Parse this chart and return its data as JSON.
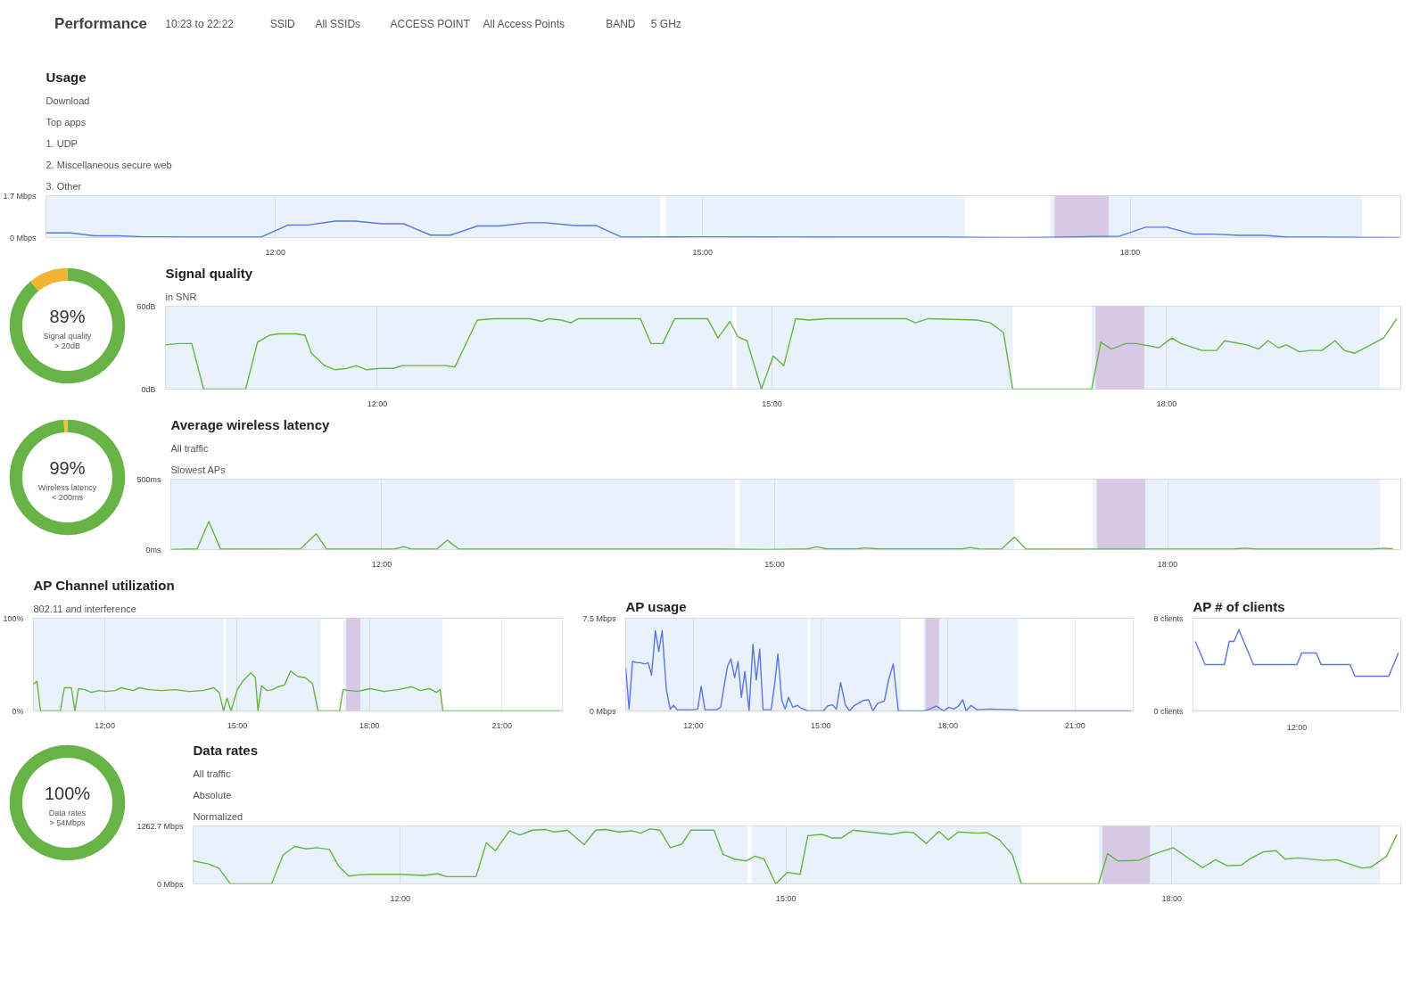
{
  "chart_data": [
    {
      "type": "other",
      "title": "Performance",
      "annotations": [
        "10:23 to 22:22",
        "SSID",
        "All SSIDs",
        "ACCESS POINT",
        "All Access Points",
        "BAND",
        "5 GHz"
      ]
    },
    {
      "type": "line",
      "title": "Usage",
      "annotations": [
        "Download",
        "Top apps",
        "1. UDP",
        "2. Miscellaneous secure web",
        "3. Other"
      ],
      "x": [
        10.39,
        10.56,
        10.73,
        10.9,
        11.08,
        11.25,
        11.42,
        11.77,
        11.9,
        12.09,
        12.23,
        12.42,
        12.56,
        12.75,
        12.9,
        13.09,
        13.23,
        13.42,
        13.57,
        13.77,
        13.9,
        14.1,
        14.25,
        14.43,
        15.01,
        15.97,
        16.66,
        17.21,
        17.56,
        17.77,
        17.92,
        18.11,
        18.26,
        18.44,
        18.59,
        18.77,
        18.94,
        19.11,
        19.28,
        19.89
      ],
      "series": [
        {
          "color": "#5c74e6",
          "values": [
            0.19,
            0.19,
            0.07,
            0.07,
            0.03,
            0.03,
            0.02,
            0.02,
            0.02,
            0.51,
            0.51,
            0.67,
            0.67,
            0.56,
            0.56,
            0.1,
            0.1,
            0.47,
            0.47,
            0.6,
            0.6,
            0.49,
            0.49,
            0.02,
            0.03,
            0.02,
            0.02,
            0,
            0.02,
            0.05,
            0.05,
            0.42,
            0.42,
            0.14,
            0.14,
            0.09,
            0.09,
            0.02,
            0.02,
            0
          ]
        }
      ],
      "xlim": [
        10.39,
        19.9
      ],
      "ylim": [
        0,
        1.7
      ],
      "xticks": [
        {
          "value": 12,
          "label": "12:00"
        },
        {
          "value": 15,
          "label": "15:00"
        },
        {
          "value": 18,
          "label": "18:00"
        }
      ],
      "yticks": [
        {
          "value": 0,
          "label": "0 Mbps"
        },
        {
          "value": 1.7,
          "label": "1.7 Mbps"
        }
      ],
      "grid": "x",
      "bands": [
        {
          "axis": "x",
          "from": 10.39,
          "to": 14.7,
          "color": "#a9cdf0"
        },
        {
          "axis": "x",
          "from": 14.74,
          "to": 16.84,
          "color": "#a9cdf0"
        },
        {
          "axis": "x",
          "from": 17.44,
          "to": 19.63,
          "color": "#a9cdf0"
        },
        {
          "axis": "x",
          "from": 17.47,
          "to": 17.85,
          "color": "#a24ea8"
        }
      ]
    },
    {
      "type": "donut",
      "categories": [
        null,
        null
      ],
      "values": [
        89,
        11
      ],
      "colors": [
        "#67b346",
        "#f5b335"
      ],
      "value_labels": [
        "89%",
        null
      ],
      "annotations": [
        "Signal quality\n> 20dB"
      ]
    },
    {
      "type": "line",
      "title": "Signal quality",
      "annotations": [
        "in SNR"
      ],
      "x": [
        10.39,
        10.49,
        10.59,
        10.68,
        11.0,
        11.09,
        11.18,
        11.25,
        11.38,
        11.45,
        11.5,
        11.6,
        11.68,
        11.77,
        11.84,
        11.92,
        12.02,
        12.12,
        12.19,
        12.36,
        12.52,
        12.59,
        12.76,
        12.89,
        13.16,
        13.25,
        13.3,
        13.4,
        13.47,
        13.53,
        14.0,
        14.08,
        14.17,
        14.26,
        14.51,
        14.59,
        14.68,
        14.74,
        14.81,
        14.92,
        15.01,
        15.09,
        15.18,
        15.28,
        15.42,
        16.02,
        16.09,
        16.19,
        16.56,
        16.66,
        16.76,
        16.83,
        17.43,
        17.5,
        17.58,
        17.69,
        17.77,
        17.94,
        18.04,
        18.11,
        18.27,
        18.38,
        18.44,
        18.61,
        18.7,
        18.77,
        18.85,
        18.91,
        19.01,
        19.09,
        19.18,
        19.28,
        19.35,
        19.43,
        19.55,
        19.65,
        19.75
      ],
      "series": [
        {
          "color": "#67b346",
          "values": [
            32,
            33,
            33,
            0,
            0,
            34,
            39,
            40,
            40,
            39,
            26,
            17,
            14,
            15,
            17,
            14,
            15,
            15,
            17,
            17,
            17,
            16,
            50,
            51,
            51,
            49,
            51,
            50,
            48,
            51,
            51,
            33,
            33,
            51,
            51,
            37,
            49,
            38,
            35,
            0,
            24,
            17,
            51,
            50,
            51,
            51,
            48,
            51,
            50,
            48,
            41,
            0,
            0,
            34,
            29,
            33,
            33,
            30,
            37,
            33,
            28,
            28,
            35,
            32,
            29,
            35,
            30,
            32,
            27,
            28,
            28,
            35,
            28,
            26,
            32,
            37,
            51
          ]
        }
      ],
      "xlim": [
        10.39,
        19.78
      ],
      "ylim": [
        0,
        60
      ],
      "xticks": [
        {
          "value": 12,
          "label": "12:00"
        },
        {
          "value": 15,
          "label": "15:00"
        },
        {
          "value": 18,
          "label": "18:00"
        }
      ],
      "yticks": [
        {
          "value": 0,
          "label": "0dB"
        },
        {
          "value": 60,
          "label": "60dB"
        }
      ],
      "grid": "x",
      "bands": [
        {
          "axis": "x",
          "from": 10.39,
          "to": 14.7,
          "color": "#a9cdf0"
        },
        {
          "axis": "x",
          "from": 14.73,
          "to": 16.83,
          "color": "#a9cdf0"
        },
        {
          "axis": "x",
          "from": 17.43,
          "to": 19.62,
          "color": "#a9cdf0"
        },
        {
          "axis": "x",
          "from": 17.46,
          "to": 17.83,
          "color": "#a24ea8"
        }
      ]
    },
    {
      "type": "donut",
      "categories": [
        null,
        null
      ],
      "values": [
        99,
        1
      ],
      "colors": [
        "#67b346",
        "#e8c53a"
      ],
      "value_labels": [
        "99%",
        null
      ],
      "annotations": [
        "Wireless latency\n< 200ms"
      ]
    },
    {
      "type": "line",
      "title": "Average wireless latency",
      "annotations": [
        "All traffic",
        "Slowest APs"
      ],
      "x": [
        10.39,
        10.51,
        10.59,
        10.68,
        10.77,
        11.38,
        11.5,
        11.58,
        12.09,
        12.17,
        12.23,
        12.42,
        12.5,
        12.59,
        14.61,
        14.95,
        15.25,
        15.32,
        15.4,
        15.62,
        15.69,
        15.79,
        16.43,
        16.49,
        16.56,
        16.73,
        16.83,
        16.92,
        18.51,
        18.6,
        18.68,
        19.55,
        19.65,
        19.72
      ],
      "series": [
        {
          "color": "#67b346",
          "values": [
            0,
            3,
            3,
            200,
            3,
            5,
            113,
            3,
            3,
            20,
            3,
            3,
            67,
            3,
            3,
            0,
            5,
            20,
            5,
            5,
            12,
            5,
            5,
            15,
            5,
            3,
            88,
            3,
            5,
            10,
            3,
            3,
            10,
            5
          ]
        }
      ],
      "xlim": [
        10.39,
        19.78
      ],
      "ylim": [
        0,
        500
      ],
      "xticks": [
        {
          "value": 12,
          "label": "12:00"
        },
        {
          "value": 15,
          "label": "15:00"
        },
        {
          "value": 18,
          "label": "18:00"
        }
      ],
      "yticks": [
        {
          "value": 0,
          "label": "0ms"
        },
        {
          "value": 500,
          "label": "500ms"
        }
      ],
      "grid": "x",
      "bands": [
        {
          "axis": "x",
          "from": 10.39,
          "to": 14.7,
          "color": "#a9cdf0"
        },
        {
          "axis": "x",
          "from": 14.73,
          "to": 16.83,
          "color": "#a9cdf0"
        },
        {
          "axis": "x",
          "from": 17.43,
          "to": 19.62,
          "color": "#a9cdf0"
        },
        {
          "axis": "x",
          "from": 17.46,
          "to": 17.83,
          "color": "#a24ea8"
        }
      ]
    },
    {
      "type": "line",
      "title": "AP Channel utilization",
      "annotations": [
        "802.11 and interference"
      ],
      "x": [
        10.38,
        10.46,
        10.54,
        10.99,
        11.08,
        11.24,
        11.32,
        11.4,
        11.55,
        11.69,
        11.86,
        12.02,
        12.23,
        12.37,
        12.64,
        12.78,
        12.99,
        13.29,
        13.6,
        13.91,
        14.22,
        14.47,
        14.59,
        14.69,
        14.77,
        14.86,
        15.0,
        15.14,
        15.31,
        15.41,
        15.47,
        15.55,
        15.68,
        15.8,
        15.92,
        16.07,
        16.21,
        16.38,
        16.54,
        16.71,
        16.83,
        17.32,
        17.4,
        17.71,
        18.02,
        18.33,
        18.64,
        18.95,
        19.15,
        19.36,
        19.52,
        19.6,
        19.66,
        22.33
      ],
      "series": [
        {
          "color": "#67b346",
          "values": [
            29,
            32,
            0,
            0,
            25,
            25,
            0,
            24,
            23,
            20,
            22,
            21,
            22,
            25,
            22,
            25,
            23,
            22,
            23,
            21,
            22,
            25,
            20,
            0,
            14,
            0,
            23,
            33,
            41,
            36,
            0,
            27,
            22,
            23,
            26,
            28,
            43,
            37,
            36,
            29,
            0,
            0,
            23,
            21,
            24,
            21,
            23,
            26,
            22,
            24,
            20,
            23,
            0,
            0
          ]
        }
      ],
      "xlim": [
        10.38,
        22.37
      ],
      "ylim": [
        0,
        100
      ],
      "xticks": [
        {
          "value": 12,
          "label": "12:00"
        },
        {
          "value": 15,
          "label": "15:00"
        },
        {
          "value": 18,
          "label": "18:00"
        },
        {
          "value": 21,
          "label": "21:00"
        }
      ],
      "yticks": [
        {
          "value": 0,
          "label": "0%"
        },
        {
          "value": 100,
          "label": "100%"
        }
      ],
      "grid": "x",
      "bands": [
        {
          "axis": "x",
          "from": 10.38,
          "to": 14.69,
          "color": "#a9cdf0"
        },
        {
          "axis": "x",
          "from": 14.75,
          "to": 16.89,
          "color": "#a9cdf0"
        },
        {
          "axis": "x",
          "from": 17.42,
          "to": 19.66,
          "color": "#a9cdf0"
        },
        {
          "axis": "x",
          "from": 17.47,
          "to": 17.79,
          "color": "#a24ea8"
        }
      ]
    },
    {
      "type": "line",
      "title": "AP usage",
      "x": [
        10.4,
        10.48,
        10.56,
        10.66,
        10.75,
        10.85,
        10.93,
        11.01,
        11.1,
        11.18,
        11.26,
        11.36,
        11.45,
        11.53,
        11.61,
        11.98,
        12.1,
        12.18,
        12.27,
        12.55,
        12.64,
        12.72,
        12.8,
        12.88,
        12.97,
        13.05,
        13.13,
        13.21,
        13.31,
        13.4,
        13.48,
        13.56,
        13.64,
        13.83,
        13.91,
        13.99,
        14.08,
        14.16,
        14.24,
        14.34,
        14.45,
        14.55,
        14.69,
        15.06,
        15.16,
        15.27,
        15.37,
        15.47,
        15.58,
        15.68,
        15.78,
        15.88,
        16.01,
        16.13,
        16.23,
        16.34,
        16.5,
        16.6,
        16.71,
        16.83,
        17.44,
        17.57,
        17.73,
        17.9,
        18.02,
        18.14,
        18.25,
        18.35,
        18.43,
        18.55,
        18.68,
        18.97,
        19.58,
        19.68,
        22.33
      ],
      "series": [
        {
          "color": "#5c74e6",
          "values": [
            3.5,
            0.15,
            4.0,
            3.9,
            3.9,
            3.8,
            3.9,
            2.9,
            6.5,
            4.8,
            6.5,
            1.7,
            0.15,
            0.45,
            0.1,
            0.1,
            0.15,
            2.0,
            0.1,
            0.1,
            0.3,
            2.0,
            3.6,
            4.2,
            2.7,
            4.0,
            1.1,
            3.2,
            0,
            5.4,
            2.5,
            5.0,
            0.1,
            0.1,
            2.1,
            4.6,
            0.9,
            0.15,
            1.1,
            0.3,
            0.45,
            0.2,
            0,
            0,
            0.4,
            0.5,
            0.15,
            2.3,
            0.5,
            0,
            0.4,
            0.6,
            0.85,
            0.9,
            0,
            0.6,
            0.8,
            2.5,
            3.8,
            0,
            0,
            0.15,
            0.4,
            0,
            0.3,
            0.15,
            0.4,
            0.9,
            0,
            0.45,
            0.1,
            0.15,
            0.1,
            0,
            0
          ]
        }
      ],
      "xlim": [
        10.4,
        22.37
      ],
      "ylim": [
        0,
        7.5
      ],
      "xticks": [
        {
          "value": 12,
          "label": "12:00"
        },
        {
          "value": 15,
          "label": "15:00"
        },
        {
          "value": 18,
          "label": "18:00"
        },
        {
          "value": 21,
          "label": "21:00"
        }
      ],
      "yticks": [
        {
          "value": 0,
          "label": "0 Mbps"
        },
        {
          "value": 7.5,
          "label": "7.5 Mbps"
        }
      ],
      "grid": "x",
      "bands": [
        {
          "axis": "x",
          "from": 10.4,
          "to": 14.69,
          "color": "#a9cdf0"
        },
        {
          "axis": "x",
          "from": 14.75,
          "to": 16.89,
          "color": "#a9cdf0"
        },
        {
          "axis": "x",
          "from": 17.42,
          "to": 19.66,
          "color": "#a9cdf0"
        },
        {
          "axis": "x",
          "from": 17.47,
          "to": 17.79,
          "color": "#a24ea8"
        }
      ]
    },
    {
      "type": "line",
      "title": "AP # of clients",
      "annotations": [
        "12:00"
      ],
      "categories": [
        null,
        null,
        null,
        null,
        null,
        null,
        null,
        null,
        null,
        null,
        null,
        null,
        null,
        null,
        null,
        null,
        null,
        null,
        null,
        null,
        null,
        null,
        null,
        null,
        null,
        null,
        null,
        null,
        null,
        null,
        null,
        null,
        null,
        null,
        null,
        null,
        null,
        null,
        null,
        null,
        null,
        null,
        null
      ],
      "series": [
        {
          "color": "#5c74e6",
          "values": [
            6,
            5,
            4,
            4,
            4,
            4,
            4,
            6,
            6,
            7,
            6,
            5,
            4,
            4,
            4,
            4,
            4,
            4,
            4,
            4,
            4,
            4,
            5,
            5,
            5,
            5,
            4,
            4,
            4,
            4,
            4,
            4,
            4,
            3,
            3,
            3,
            3,
            3,
            3,
            3,
            3,
            4,
            5
          ]
        }
      ],
      "ylim": [
        0,
        8
      ],
      "yticks": [
        {
          "value": 0,
          "label": "0 clients"
        },
        {
          "value": 8,
          "label": "8 clients"
        }
      ]
    },
    {
      "type": "pie",
      "categories": [
        null
      ],
      "values": [
        100
      ],
      "colors": [
        "#67b346"
      ],
      "value_labels": [
        "100%"
      ],
      "annotations": [
        "Data rates\n> 54Mbps"
      ]
    },
    {
      "type": "line",
      "title": "Data rates",
      "annotations": [
        "All traffic",
        "Absolute",
        "Normalized"
      ],
      "x": [
        10.39,
        10.51,
        10.59,
        10.68,
        11.0,
        11.09,
        11.18,
        11.27,
        11.35,
        11.45,
        11.52,
        11.6,
        11.68,
        11.78,
        11.99,
        12.19,
        12.29,
        12.36,
        12.59,
        12.67,
        12.74,
        12.85,
        12.93,
        13.03,
        13.13,
        13.2,
        13.3,
        13.43,
        13.52,
        13.6,
        13.7,
        13.8,
        13.87,
        13.94,
        14.02,
        14.1,
        14.19,
        14.26,
        14.44,
        14.51,
        14.6,
        14.69,
        14.76,
        14.83,
        14.92,
        15.01,
        15.11,
        15.17,
        15.28,
        15.36,
        15.43,
        15.52,
        15.69,
        15.82,
        15.92,
        15.99,
        16.09,
        16.19,
        16.26,
        16.34,
        16.49,
        16.56,
        16.66,
        16.76,
        16.83,
        17.43,
        17.5,
        17.58,
        17.74,
        17.87,
        18.01,
        18.14,
        18.24,
        18.34,
        18.43,
        18.54,
        18.61,
        18.71,
        18.81,
        18.88,
        18.98,
        19.18,
        19.28,
        19.38,
        19.48,
        19.55,
        19.67,
        19.75
      ],
      "series": [
        {
          "color": "#67b346",
          "values": [
            500,
            434,
            342,
            0,
            0,
            631,
            815,
            763,
            789,
            750,
            395,
            171,
            197,
            210,
            210,
            184,
            224,
            158,
            158,
            894,
            723,
            1157,
            1065,
            1170,
            1184,
            1131,
            1170,
            855,
            1170,
            1184,
            1131,
            1157,
            1105,
            1197,
            1170,
            789,
            868,
            1170,
            1170,
            644,
            539,
            500,
            605,
            539,
            0,
            250,
            210,
            1052,
            1078,
            999,
            999,
            1170,
            1118,
            1078,
            1131,
            1118,
            881,
            1144,
            960,
            1131,
            1105,
            1118,
            960,
            631,
            0,
            0,
            657,
            500,
            513,
            657,
            789,
            539,
            355,
            526,
            395,
            408,
            552,
            697,
            723,
            539,
            565,
            513,
            526,
            434,
            342,
            368,
            605,
            1078
          ]
        }
      ],
      "xlim": [
        10.39,
        19.78
      ],
      "ylim": [
        0,
        1262.7
      ],
      "xticks": [
        {
          "value": 12,
          "label": "12:00"
        },
        {
          "value": 15,
          "label": "15:00"
        },
        {
          "value": 18,
          "label": "18:00"
        }
      ],
      "yticks": [
        {
          "value": 0,
          "label": "0 Mbps"
        },
        {
          "value": 1262.7,
          "label": "1262.7 Mbps"
        }
      ],
      "grid": "x",
      "bands": [
        {
          "axis": "x",
          "from": 10.39,
          "to": 14.7,
          "color": "#a9cdf0"
        },
        {
          "axis": "x",
          "from": 14.73,
          "to": 16.83,
          "color": "#a9cdf0"
        },
        {
          "axis": "x",
          "from": 17.43,
          "to": 19.62,
          "color": "#a9cdf0"
        },
        {
          "axis": "x",
          "from": 17.46,
          "to": 17.83,
          "color": "#a24ea8"
        }
      ]
    }
  ]
}
